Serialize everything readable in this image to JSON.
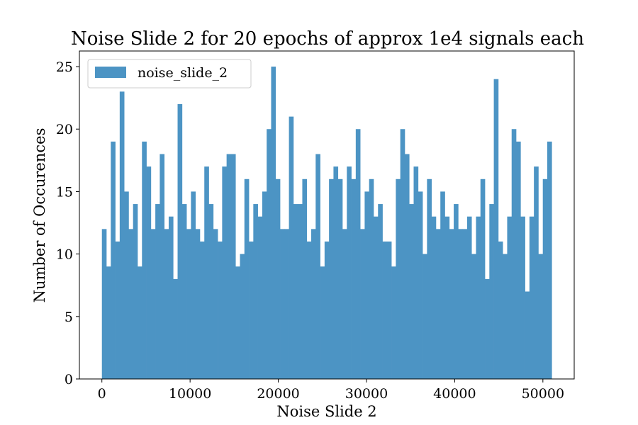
{
  "chart_data": {
    "type": "bar",
    "title": "Noise Slide 2 for 20 epochs of approx 1e4 signals each",
    "xlabel": "Noise Slide 2",
    "ylabel": "Number of Occurences",
    "xlim": [
      -2550,
      53550
    ],
    "ylim": [
      0,
      26.25
    ],
    "x_ticks": [
      0,
      10000,
      20000,
      30000,
      40000,
      50000
    ],
    "x_tick_labels": [
      "0",
      "10000",
      "20000",
      "30000",
      "40000",
      "50000"
    ],
    "y_ticks": [
      0,
      5,
      10,
      15,
      20,
      25
    ],
    "y_tick_labels": [
      "0",
      "5",
      "10",
      "15",
      "20",
      "25"
    ],
    "bin_start": 0,
    "bin_end": 51000,
    "legend_position": "upper-left",
    "series": [
      {
        "name": "noise_slide_2",
        "color": "#4c94c4",
        "values": [
          12,
          9,
          19,
          11,
          23,
          15,
          12,
          14,
          9,
          19,
          17,
          12,
          14,
          18,
          12,
          13,
          8,
          22,
          14,
          12,
          15,
          12,
          11,
          17,
          14,
          12,
          11,
          17,
          18,
          18,
          9,
          10,
          16,
          11,
          14,
          13,
          15,
          20,
          25,
          16,
          12,
          12,
          21,
          14,
          14,
          16,
          11,
          12,
          18,
          9,
          11,
          16,
          17,
          16,
          12,
          17,
          16,
          20,
          12,
          15,
          16,
          13,
          14,
          11,
          11,
          9,
          16,
          20,
          18,
          14,
          17,
          15,
          10,
          16,
          13,
          12,
          15,
          13,
          12,
          14,
          12,
          12,
          13,
          10,
          13,
          16,
          8,
          14,
          24,
          11,
          10,
          13,
          20,
          19,
          13,
          7,
          13,
          17,
          10,
          16,
          19
        ]
      }
    ]
  }
}
